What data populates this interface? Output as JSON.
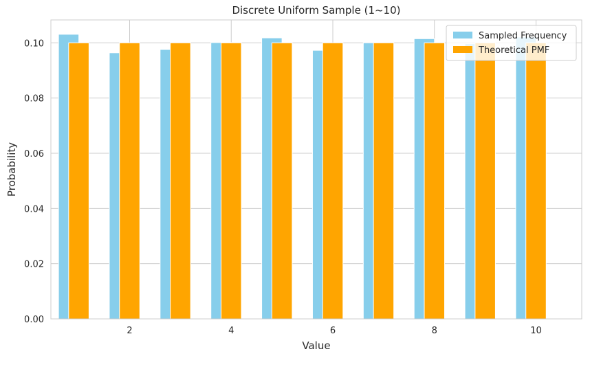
{
  "chart_data": {
    "type": "bar",
    "title": "Discrete Uniform Sample (1~10)",
    "xlabel": "Value",
    "ylabel": "Probability",
    "x": [
      1,
      2,
      3,
      4,
      5,
      6,
      7,
      8,
      9,
      10
    ],
    "x_ticks": [
      "2",
      "4",
      "6",
      "8",
      "10"
    ],
    "x_tick_values": [
      2,
      4,
      6,
      8,
      10
    ],
    "y_ticks": [
      "0.00",
      "0.02",
      "0.04",
      "0.06",
      "0.08",
      "0.10"
    ],
    "y_tick_values": [
      0,
      0.02,
      0.04,
      0.06,
      0.08,
      0.1
    ],
    "xlim": [
      0.45,
      10.9
    ],
    "ylim": [
      0,
      0.1083
    ],
    "grid": true,
    "legend_position": "top-right",
    "series": [
      {
        "name": "Sampled Frequency",
        "color": "#87ceeb",
        "values": [
          0.1031,
          0.0964,
          0.0976,
          0.1001,
          0.1018,
          0.0973,
          0.1,
          0.1015,
          0.0997,
          0.1021
        ]
      },
      {
        "name": "Theoretical PMF",
        "color": "#ffa500",
        "values": [
          0.1,
          0.1,
          0.1,
          0.1,
          0.1,
          0.1,
          0.1,
          0.1,
          0.1,
          0.1
        ]
      }
    ]
  }
}
